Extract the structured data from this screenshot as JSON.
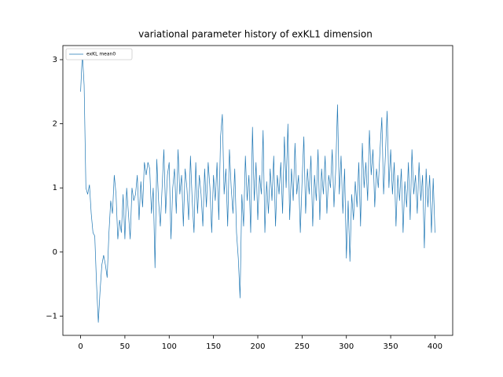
{
  "chart_data": {
    "type": "line",
    "title": "variational parameter history of exKL1 dimension",
    "x": [
      0,
      2,
      4,
      6,
      8,
      10,
      12,
      14,
      16,
      18,
      20,
      22,
      24,
      26,
      28,
      30,
      32,
      34,
      36,
      38,
      40,
      42,
      44,
      46,
      48,
      50,
      52,
      54,
      56,
      58,
      60,
      62,
      64,
      66,
      68,
      70,
      72,
      74,
      76,
      78,
      80,
      82,
      84,
      86,
      88,
      90,
      92,
      94,
      96,
      98,
      100,
      102,
      104,
      106,
      108,
      110,
      112,
      114,
      116,
      118,
      120,
      122,
      124,
      126,
      128,
      130,
      132,
      134,
      136,
      138,
      140,
      142,
      144,
      146,
      148,
      150,
      152,
      154,
      156,
      158,
      160,
      162,
      164,
      166,
      168,
      170,
      172,
      174,
      176,
      178,
      180,
      182,
      184,
      186,
      188,
      190,
      192,
      194,
      196,
      198,
      200,
      202,
      204,
      206,
      208,
      210,
      212,
      214,
      216,
      218,
      220,
      222,
      224,
      226,
      228,
      230,
      232,
      234,
      236,
      238,
      240,
      242,
      244,
      246,
      248,
      250,
      252,
      254,
      256,
      258,
      260,
      262,
      264,
      266,
      268,
      270,
      272,
      274,
      276,
      278,
      280,
      282,
      284,
      286,
      288,
      290,
      292,
      294,
      296,
      298,
      300,
      302,
      304,
      306,
      308,
      310,
      312,
      314,
      316,
      318,
      320,
      322,
      324,
      326,
      328,
      330,
      332,
      334,
      336,
      338,
      340,
      342,
      344,
      346,
      348,
      350,
      352,
      354,
      356,
      358,
      360,
      362,
      364,
      366,
      368,
      370,
      372,
      374,
      376,
      378,
      380,
      382,
      384,
      386,
      388,
      390,
      392,
      394,
      396,
      398,
      400
    ],
    "series": [
      {
        "name": "exKL mean0",
        "color": "#1f77b4",
        "values": [
          2.5,
          3.1,
          2.6,
          1.0,
          0.9,
          1.05,
          0.6,
          0.3,
          0.25,
          -0.5,
          -1.1,
          -0.6,
          -0.2,
          -0.05,
          -0.2,
          -0.4,
          0.3,
          0.8,
          0.6,
          1.2,
          0.9,
          0.2,
          0.5,
          0.3,
          0.9,
          0.2,
          1.0,
          0.6,
          0.2,
          1.0,
          0.8,
          0.9,
          1.2,
          0.5,
          1.1,
          0.7,
          1.4,
          1.2,
          1.4,
          1.3,
          0.6,
          1.0,
          -0.25,
          1.45,
          0.8,
          0.4,
          1.0,
          1.6,
          0.6,
          1.2,
          1.4,
          0.2,
          1.0,
          1.3,
          0.6,
          1.6,
          0.9,
          1.2,
          0.4,
          1.3,
          1.0,
          0.5,
          1.5,
          0.8,
          0.3,
          1.4,
          0.6,
          1.2,
          0.9,
          0.4,
          1.3,
          0.7,
          1.4,
          1.0,
          0.3,
          1.2,
          0.8,
          1.4,
          0.5,
          1.8,
          2.15,
          0.9,
          1.3,
          0.4,
          1.6,
          1.0,
          0.6,
          1.3,
          0.3,
          -0.1,
          -0.72,
          0.9,
          0.4,
          1.5,
          0.8,
          1.2,
          0.3,
          1.95,
          0.8,
          1.4,
          0.5,
          1.2,
          0.9,
          1.9,
          0.3,
          1.1,
          0.6,
          1.3,
          0.8,
          1.5,
          0.4,
          1.2,
          0.9,
          1.4,
          0.6,
          1.8,
          1.0,
          2.0,
          0.5,
          1.3,
          0.8,
          1.7,
          0.9,
          1.2,
          0.3,
          1.1,
          1.8,
          0.6,
          1.3,
          0.9,
          1.5,
          0.4,
          1.2,
          0.8,
          1.6,
          0.5,
          1.3,
          0.9,
          1.5,
          0.6,
          1.2,
          1.0,
          1.6,
          0.7,
          1.3,
          2.3,
          0.9,
          1.5,
          0.6,
          1.3,
          -0.1,
          0.8,
          -0.15,
          0.9,
          0.5,
          1.1,
          0.7,
          1.4,
          0.4,
          1.7,
          1.0,
          1.4,
          0.8,
          1.9,
          1.2,
          1.6,
          0.7,
          1.3,
          1.0,
          1.6,
          2.1,
          0.9,
          1.5,
          2.2,
          1.0,
          1.6,
          0.9,
          1.4,
          0.4,
          1.2,
          0.8,
          1.3,
          0.3,
          1.1,
          0.7,
          1.4,
          0.5,
          1.6,
          0.9,
          1.2,
          0.6,
          1.4,
          0.8,
          1.2,
          0.06,
          1.3,
          0.7,
          1.2,
          0.3,
          1.15,
          0.3
        ]
      }
    ],
    "xlim": [
      -20,
      420
    ],
    "ylim": [
      -1.3,
      3.22
    ],
    "xticks": [
      0,
      50,
      100,
      150,
      200,
      250,
      300,
      350,
      400
    ],
    "yticks": [
      {
        "value": -1,
        "label": "−1"
      },
      0,
      1,
      2,
      3
    ],
    "legend": "upper left"
  }
}
